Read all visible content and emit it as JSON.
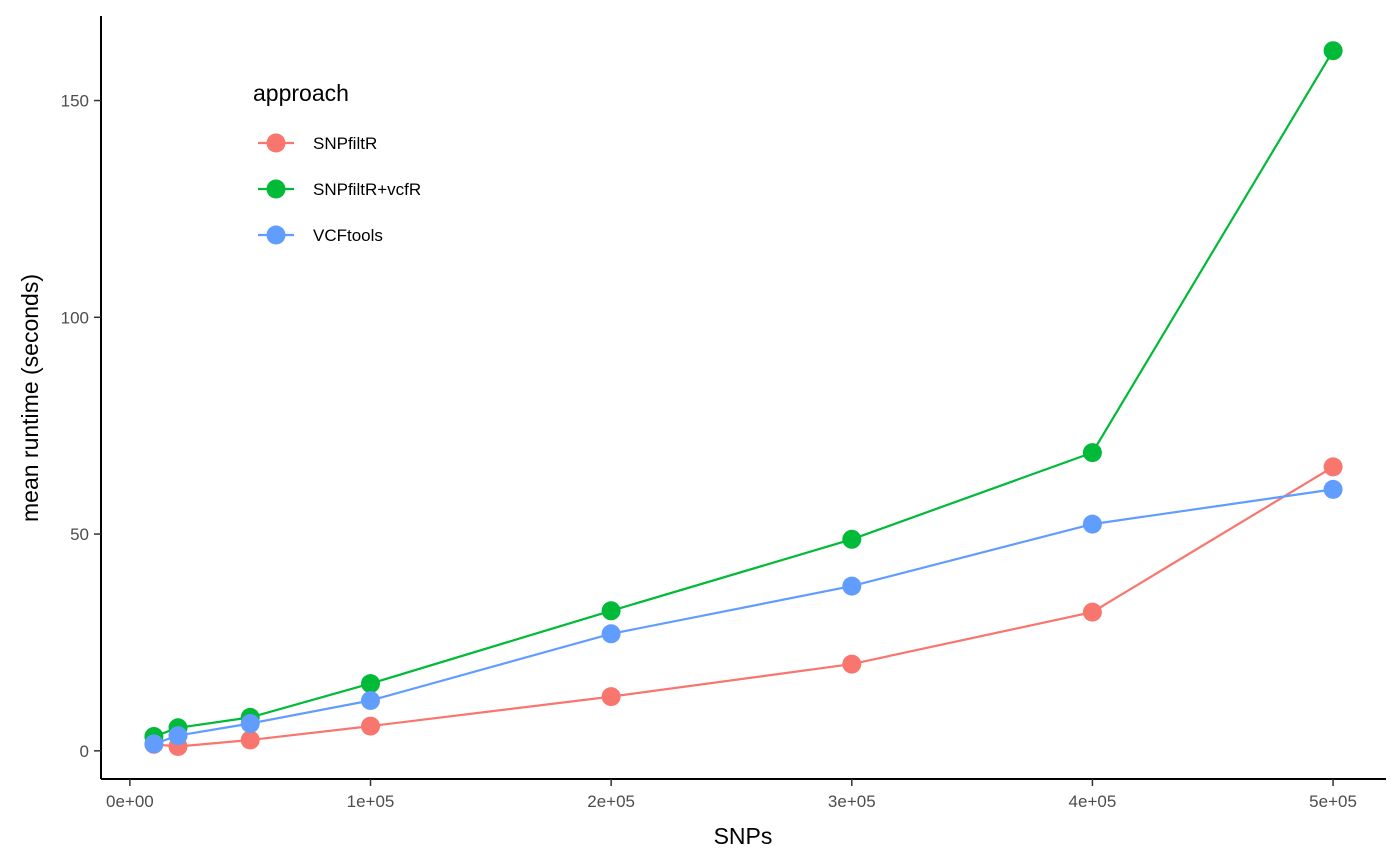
{
  "chart_data": {
    "type": "line",
    "xlabel": "SNPs",
    "ylabel": "mean runtime (seconds)",
    "xlim": [
      -12000,
      522000
    ],
    "ylim": [
      -6.5,
      169.5
    ],
    "x_ticks": [
      0,
      100000,
      200000,
      300000,
      400000,
      500000
    ],
    "x_tick_labels": [
      "0e+00",
      "1e+05",
      "2e+05",
      "3e+05",
      "4e+05",
      "5e+05"
    ],
    "y_ticks": [
      0,
      50,
      100,
      150
    ],
    "y_tick_labels": [
      "0",
      "50",
      "100",
      "150"
    ],
    "grid": false,
    "legend": {
      "title": "approach",
      "position": "top-left"
    },
    "series": [
      {
        "name": "SNPfiltR",
        "color": "#F8766D",
        "x": [
          10000,
          20000,
          50000,
          100000,
          200000,
          300000,
          400000,
          500000
        ],
        "y": [
          1.5,
          1.0,
          2.5,
          5.7,
          12.5,
          20.0,
          32.0,
          65.5
        ]
      },
      {
        "name": "SNPfiltR+vcfR",
        "color": "#00BA38",
        "x": [
          10000,
          20000,
          50000,
          100000,
          200000,
          300000,
          400000,
          500000
        ],
        "y": [
          3.3,
          5.3,
          7.7,
          15.5,
          32.3,
          48.8,
          68.8,
          161.5
        ]
      },
      {
        "name": "VCFtools",
        "color": "#619CFF",
        "x": [
          10000,
          20000,
          50000,
          100000,
          200000,
          300000,
          400000,
          500000
        ],
        "y": [
          1.6,
          3.5,
          6.3,
          11.6,
          27.0,
          38.0,
          52.3,
          60.3
        ]
      }
    ]
  }
}
